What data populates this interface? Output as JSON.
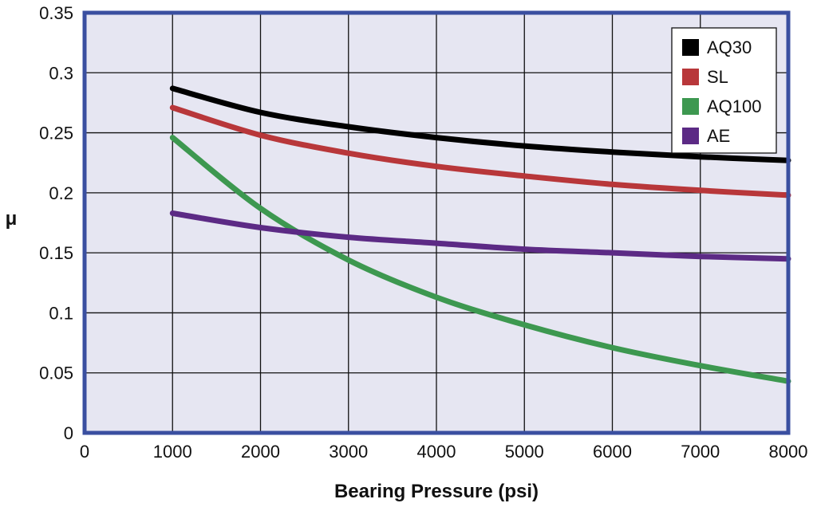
{
  "chart_data": {
    "type": "line",
    "xlabel": "Bearing Pressure (psi)",
    "ylabel": "μ",
    "xlim": [
      0,
      8000
    ],
    "ylim": [
      0,
      0.35
    ],
    "x_ticks": [
      "0",
      "1000",
      "2000",
      "3000",
      "4000",
      "5000",
      "6000",
      "7000",
      "8000"
    ],
    "y_ticks": [
      "0",
      "0.05",
      "0.1",
      "0.15",
      "0.2",
      "0.25",
      "0.3",
      "0.35"
    ],
    "grid": true,
    "legend_position": "top-right",
    "x": [
      1000,
      2000,
      3000,
      4000,
      5000,
      6000,
      7000,
      8000
    ],
    "series": [
      {
        "name": "AQ30",
        "color": "#000000",
        "values": [
          0.287,
          0.267,
          0.255,
          0.246,
          0.239,
          0.234,
          0.23,
          0.227
        ]
      },
      {
        "name": "SL",
        "color": "#b8373a",
        "values": [
          0.271,
          0.248,
          0.233,
          0.222,
          0.214,
          0.207,
          0.202,
          0.198
        ]
      },
      {
        "name": "AQ100",
        "color": "#3d9850",
        "values": [
          0.246,
          0.187,
          0.144,
          0.113,
          0.09,
          0.071,
          0.056,
          0.043
        ]
      },
      {
        "name": "AE",
        "color": "#5c2a85",
        "values": [
          0.183,
          0.171,
          0.163,
          0.158,
          0.153,
          0.15,
          0.147,
          0.145
        ]
      }
    ],
    "style": {
      "plot_background": "#e6e6f2",
      "frame_color": "#3a4fa0",
      "grid_color": "#111111"
    }
  }
}
